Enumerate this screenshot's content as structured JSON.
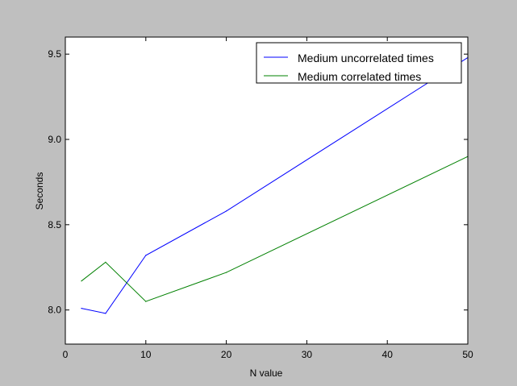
{
  "chart_data": {
    "type": "line",
    "x": [
      2,
      5,
      10,
      20,
      50
    ],
    "series": [
      {
        "name": "Medium uncorrelated times",
        "color": "#0000ff",
        "values": [
          8.01,
          7.98,
          8.32,
          8.58,
          9.48
        ]
      },
      {
        "name": "Medium correlated times",
        "color": "#008000",
        "values": [
          8.17,
          8.28,
          8.05,
          8.22,
          8.9
        ]
      }
    ],
    "title": "",
    "xlabel": "N value",
    "ylabel": "Seconds",
    "xlim": [
      0,
      50
    ],
    "ylim": [
      7.8,
      9.6
    ],
    "xticks": [
      "0",
      "10",
      "20",
      "30",
      "40",
      "50"
    ],
    "yticks": [
      "8.0",
      "8.5",
      "9.0",
      "9.5"
    ],
    "grid": false,
    "legend_position": "top-right",
    "figure_background": "#bfbfbf",
    "axes_background": "#ffffff"
  }
}
